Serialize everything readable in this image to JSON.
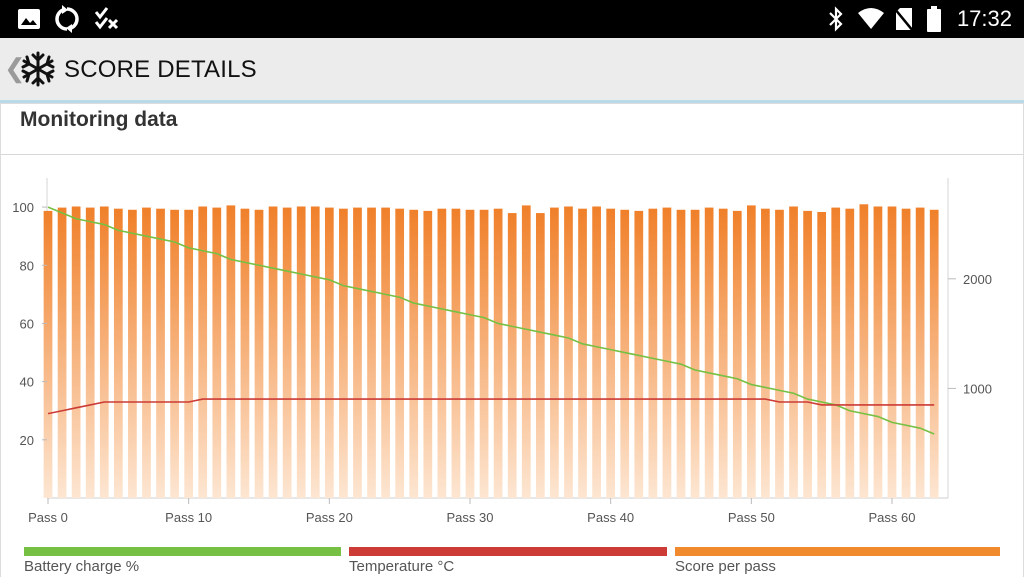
{
  "status_bar": {
    "time": "17:32",
    "left_icons": [
      "image-icon",
      "sync-icon",
      "checklist-icon"
    ],
    "right_icons": [
      "bluetooth-icon",
      "wifi-icon",
      "no-sim-icon",
      "battery-icon"
    ]
  },
  "header": {
    "title": "SCORE DETAILS",
    "back_glyph": "❮",
    "icon": "snowflake-icon"
  },
  "card": {
    "title": "Monitoring data"
  },
  "colors": {
    "battery": "#76c043",
    "temperature": "#cc3b36",
    "score": "#f08a2c"
  },
  "chart_data": {
    "type": "bar",
    "x_ticks": [
      {
        "value": 0,
        "label": "Pass 0"
      },
      {
        "value": 10,
        "label": "Pass 10"
      },
      {
        "value": 20,
        "label": "Pass 20"
      },
      {
        "value": 30,
        "label": "Pass 30"
      },
      {
        "value": 40,
        "label": "Pass 40"
      },
      {
        "value": 50,
        "label": "Pass 50"
      },
      {
        "value": 60,
        "label": "Pass 60"
      }
    ],
    "left_axis": {
      "ylim": [
        0,
        110
      ],
      "ticks": [
        20,
        40,
        60,
        80,
        100
      ]
    },
    "right_axis": {
      "ylim": [
        0,
        2920
      ],
      "ticks": [
        1000,
        2000
      ]
    },
    "grid": false,
    "legend_position": "bottom",
    "series": [
      {
        "name": "Score per pass",
        "type": "bar",
        "axis": "right",
        "values": [
          2620,
          2650,
          2660,
          2650,
          2660,
          2640,
          2630,
          2650,
          2640,
          2630,
          2630,
          2660,
          2650,
          2670,
          2640,
          2630,
          2660,
          2650,
          2660,
          2660,
          2650,
          2640,
          2650,
          2650,
          2650,
          2640,
          2630,
          2620,
          2640,
          2640,
          2630,
          2630,
          2640,
          2600,
          2670,
          2600,
          2650,
          2660,
          2640,
          2660,
          2640,
          2630,
          2620,
          2640,
          2650,
          2630,
          2630,
          2650,
          2640,
          2620,
          2670,
          2640,
          2630,
          2660,
          2620,
          2610,
          2650,
          2640,
          2680,
          2660,
          2660,
          2640,
          2650,
          2630
        ]
      },
      {
        "name": "Battery charge %",
        "type": "line",
        "axis": "left",
        "values": [
          100,
          98,
          96,
          95,
          94,
          92,
          91,
          90,
          89,
          88,
          86,
          85,
          84,
          82,
          81,
          80,
          79,
          78,
          77,
          76,
          75,
          73,
          72,
          71,
          70,
          69,
          67,
          66,
          65,
          64,
          63,
          62,
          60,
          59,
          58,
          57,
          56,
          55,
          53,
          52,
          51,
          50,
          49,
          48,
          47,
          46,
          44,
          43,
          42,
          41,
          39,
          38,
          37,
          36,
          34,
          33,
          32,
          30,
          29,
          28,
          26,
          25,
          24,
          22
        ]
      },
      {
        "name": "Temperature °C",
        "type": "line",
        "axis": "left",
        "values": [
          29,
          30,
          31,
          32,
          33,
          33,
          33,
          33,
          33,
          33,
          33,
          34,
          34,
          34,
          34,
          34,
          34,
          34,
          34,
          34,
          34,
          34,
          34,
          34,
          34,
          34,
          34,
          34,
          34,
          34,
          34,
          34,
          34,
          34,
          34,
          34,
          34,
          34,
          34,
          34,
          34,
          34,
          34,
          34,
          34,
          34,
          34,
          34,
          34,
          34,
          34,
          34,
          33,
          33,
          33,
          32,
          32,
          32,
          32,
          32,
          32,
          32,
          32,
          32
        ]
      }
    ]
  },
  "legend": [
    {
      "label": "Battery charge %",
      "color": "#76c043"
    },
    {
      "label": "Temperature °C",
      "color": "#cc3b36"
    },
    {
      "label": "Score per pass",
      "color": "#f08a2c"
    }
  ]
}
